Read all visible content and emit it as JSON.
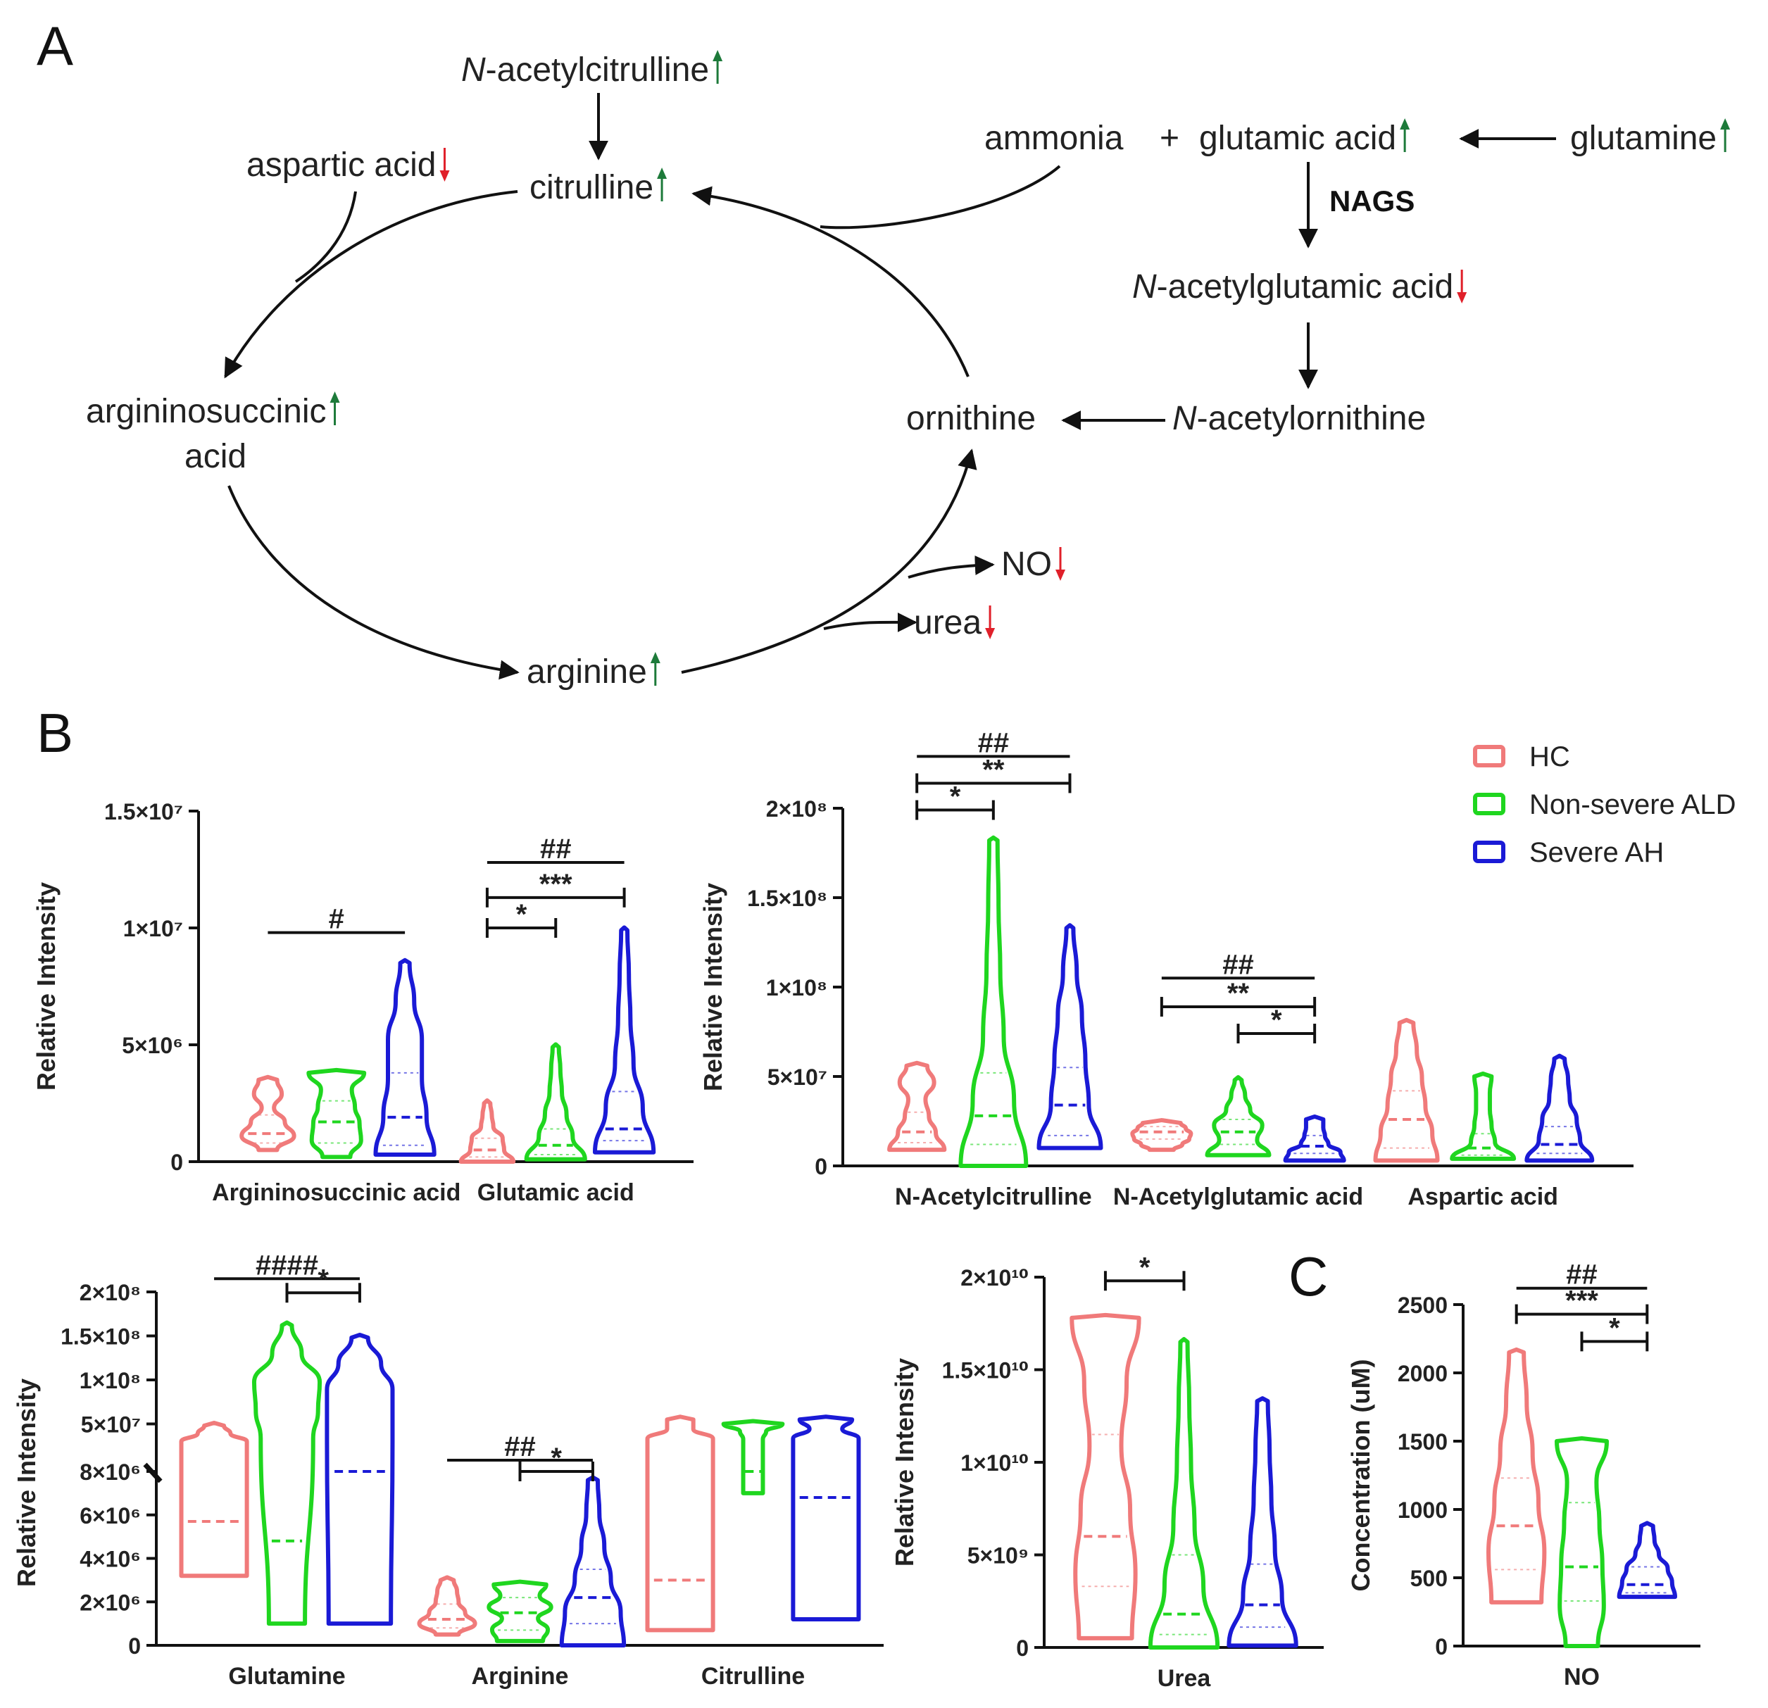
{
  "panels": {
    "a_label": "A",
    "b_label": "B",
    "c_label": "C"
  },
  "pathway": {
    "up_color": "#1d7a3a",
    "down_color": "#e0202a",
    "nags_label": "NAGS",
    "nodes": [
      {
        "id": "acetylcitrulline",
        "prefix": "N",
        "text": "-acetylcitrulline",
        "dir": "up"
      },
      {
        "id": "aspartic",
        "prefix": "",
        "text": "aspartic acid",
        "dir": "down"
      },
      {
        "id": "citrulline",
        "prefix": "",
        "text": "citrulline",
        "dir": "up"
      },
      {
        "id": "ammonia",
        "prefix": "",
        "text": "ammonia",
        "dir": ""
      },
      {
        "id": "plus",
        "prefix": "",
        "text": "+",
        "dir": ""
      },
      {
        "id": "glutamic",
        "prefix": "",
        "text": "glutamic acid",
        "dir": "up"
      },
      {
        "id": "glutamine",
        "prefix": "",
        "text": "glutamine",
        "dir": "up"
      },
      {
        "id": "acetylglutamic",
        "prefix": "N",
        "text": "-acetylglutamic acid",
        "dir": "down"
      },
      {
        "id": "argsucc1",
        "prefix": "",
        "text": "argininosuccinic",
        "dir": "up"
      },
      {
        "id": "argsucc2",
        "prefix": "",
        "text": "acid",
        "dir": ""
      },
      {
        "id": "ornithine",
        "prefix": "",
        "text": "ornithine",
        "dir": ""
      },
      {
        "id": "acetylornithine",
        "prefix": "N",
        "text": "-acetylornithine",
        "dir": ""
      },
      {
        "id": "no",
        "prefix": "",
        "text": "NO",
        "dir": "down"
      },
      {
        "id": "urea",
        "prefix": "",
        "text": "urea",
        "dir": "down"
      },
      {
        "id": "arginine",
        "prefix": "",
        "text": "arginine",
        "dir": "up"
      }
    ]
  },
  "legend": {
    "items": [
      {
        "label": "HC",
        "color": "#f07a7a"
      },
      {
        "label": "Non-severe ALD",
        "color": "#1fd61f"
      },
      {
        "label": "Severe AH",
        "color": "#1a1ad6"
      }
    ]
  },
  "chart_data": [
    {
      "type": "violin",
      "id": "b1",
      "ylabel": "Relative Intensity",
      "ylim": [
        0,
        15000000
      ],
      "yticks": [
        {
          "v": 0,
          "label": "0"
        },
        {
          "v": 5000000,
          "label": "5×10⁶"
        },
        {
          "v": 10000000,
          "label": "1×10⁷"
        },
        {
          "v": 15000000,
          "label": "1.5×10⁷"
        }
      ],
      "categories": [
        "Argininosuccinic acid",
        "Glutamic acid"
      ],
      "groups": [
        {
          "category": 0,
          "series": 0,
          "min": 500000,
          "max": 3500000,
          "median": 1200000,
          "q1": 800000,
          "q3": 2000000,
          "widths": [
            0.3,
            0.85,
            0.55,
            0.2,
            0.45,
            0.3
          ]
        },
        {
          "category": 0,
          "series": 1,
          "min": 200000,
          "max": 3800000,
          "median": 1700000,
          "q1": 800000,
          "q3": 2600000,
          "widths": [
            0.45,
            0.8,
            0.75,
            0.6,
            0.5,
            0.9
          ]
        },
        {
          "category": 0,
          "series": 2,
          "min": 300000,
          "max": 8500000,
          "median": 1900000,
          "q1": 700000,
          "q3": 3800000,
          "widths": [
            0.95,
            0.7,
            0.55,
            0.55,
            0.3,
            0.15
          ]
        },
        {
          "category": 1,
          "series": 0,
          "min": 0,
          "max": 2500000,
          "median": 500000,
          "q1": 200000,
          "q3": 1000000,
          "widths": [
            0.85,
            0.55,
            0.5,
            0.2,
            0.15,
            0.1
          ]
        },
        {
          "category": 1,
          "series": 1,
          "min": 100000,
          "max": 4900000,
          "median": 700000,
          "q1": 300000,
          "q3": 1400000,
          "widths": [
            0.95,
            0.55,
            0.35,
            0.2,
            0.15,
            0.1
          ]
        },
        {
          "category": 1,
          "series": 2,
          "min": 400000,
          "max": 9900000,
          "median": 1400000,
          "q1": 900000,
          "q3": 3000000,
          "widths": [
            0.95,
            0.6,
            0.3,
            0.2,
            0.15,
            0.1
          ]
        }
      ],
      "sig": [
        {
          "from": [
            0,
            0
          ],
          "to": [
            0,
            2
          ],
          "label": "#",
          "y": 9800000,
          "caps": false
        },
        {
          "from": [
            1,
            0
          ],
          "to": [
            1,
            2
          ],
          "label": "##",
          "y": 12800000,
          "caps": false
        },
        {
          "from": [
            1,
            0
          ],
          "to": [
            1,
            2
          ],
          "label": "***",
          "y": 11300000,
          "caps": true
        },
        {
          "from": [
            1,
            0
          ],
          "to": [
            1,
            1
          ],
          "label": "*",
          "y": 10000000,
          "caps": true
        }
      ]
    },
    {
      "type": "violin",
      "id": "b2",
      "ylabel": "Relative Intensity",
      "ylim": [
        0,
        200000000
      ],
      "yticks": [
        {
          "v": 0,
          "label": "0"
        },
        {
          "v": 50000000,
          "label": "5×10⁷"
        },
        {
          "v": 100000000,
          "label": "1×10⁸"
        },
        {
          "v": 150000000,
          "label": "1.5×10⁸"
        },
        {
          "v": 200000000,
          "label": "2×10⁸"
        }
      ],
      "categories": [
        "N-Acetylcitrulline",
        "N-Acetylglutamic acid",
        "Aspartic acid"
      ],
      "groups": [
        {
          "category": 0,
          "series": 0,
          "min": 9000000,
          "max": 56000000,
          "median": 19000000,
          "q1": 13000000,
          "q3": 30000000,
          "widths": [
            0.8,
            0.55,
            0.35,
            0.25,
            0.5,
            0.3
          ]
        },
        {
          "category": 0,
          "series": 1,
          "min": 0,
          "max": 182000000,
          "median": 28000000,
          "q1": 12000000,
          "q3": 52000000,
          "widths": [
            0.95,
            0.6,
            0.3,
            0.2,
            0.15,
            0.12
          ]
        },
        {
          "category": 0,
          "series": 2,
          "min": 10000000,
          "max": 133000000,
          "median": 34000000,
          "q1": 17000000,
          "q3": 55000000,
          "widths": [
            0.9,
            0.55,
            0.45,
            0.35,
            0.2,
            0.1
          ]
        },
        {
          "category": 1,
          "series": 0,
          "min": 9000000,
          "max": 24000000,
          "median": 19000000,
          "q1": 15000000,
          "q3": 22000000,
          "widths": [
            0.35,
            0.6,
            0.8,
            0.85,
            0.7,
            0.55
          ]
        },
        {
          "category": 1,
          "series": 1,
          "min": 6000000,
          "max": 48000000,
          "median": 19000000,
          "q1": 12000000,
          "q3": 26000000,
          "widths": [
            0.9,
            0.55,
            0.7,
            0.35,
            0.2,
            0.1
          ]
        },
        {
          "category": 1,
          "series": 2,
          "min": 3000000,
          "max": 26000000,
          "median": 11000000,
          "q1": 7000000,
          "q3": 17000000,
          "widths": [
            0.85,
            0.75,
            0.4,
            0.3,
            0.25,
            0.25
          ]
        }
      ],
      "sig": [
        {
          "from": [
            0,
            0
          ],
          "to": [
            0,
            2
          ],
          "label": "##",
          "y": 229000000,
          "caps": false
        },
        {
          "from": [
            0,
            0
          ],
          "to": [
            0,
            2
          ],
          "label": "**",
          "y": 214000000,
          "caps": true
        },
        {
          "from": [
            0,
            0
          ],
          "to": [
            0,
            1
          ],
          "label": "*",
          "y": 199000000,
          "caps": true
        },
        {
          "from": [
            1,
            0
          ],
          "to": [
            1,
            2
          ],
          "label": "##",
          "y": 105000000,
          "caps": false
        },
        {
          "from": [
            1,
            0
          ],
          "to": [
            1,
            2
          ],
          "label": "**",
          "y": 89000000,
          "caps": true
        },
        {
          "from": [
            1,
            1
          ],
          "to": [
            1,
            2
          ],
          "label": "*",
          "y": 74000000,
          "caps": true
        }
      ],
      "extra_groups": [
        {
          "category": 2,
          "series": 0,
          "min": 3000000,
          "max": 80000000,
          "median": 26000000,
          "q1": 10000000,
          "q3": 42000000,
          "widths": [
            0.9,
            0.75,
            0.55,
            0.45,
            0.3,
            0.2
          ]
        },
        {
          "category": 2,
          "series": 1,
          "min": 4000000,
          "max": 50000000,
          "median": 10000000,
          "q1": 6000000,
          "q3": 18000000,
          "widths": [
            0.9,
            0.35,
            0.25,
            0.2,
            0.2,
            0.25
          ]
        },
        {
          "category": 2,
          "series": 2,
          "min": 3000000,
          "max": 60000000,
          "median": 12000000,
          "q1": 7000000,
          "q3": 22000000,
          "widths": [
            0.95,
            0.6,
            0.5,
            0.3,
            0.25,
            0.15
          ]
        }
      ]
    },
    {
      "type": "violin",
      "id": "b3",
      "ylabel": "Relative Intensity",
      "broken_axis": true,
      "lower_ylim": [
        0,
        8000000
      ],
      "upper_ylim": [
        8000000,
        200000000
      ],
      "yticks_lower": [
        {
          "v": 0,
          "label": "0"
        },
        {
          "v": 2000000,
          "label": "2×10⁶"
        },
        {
          "v": 4000000,
          "label": "4×10⁶"
        },
        {
          "v": 6000000,
          "label": "6×10⁶"
        },
        {
          "v": 8000000,
          "label": "8×10⁶"
        }
      ],
      "yticks_upper": [
        {
          "v": 50000000,
          "label": "5×10⁷"
        },
        {
          "v": 100000000,
          "label": "1×10⁸"
        },
        {
          "v": 150000000,
          "label": "1.5×10⁸"
        },
        {
          "v": 200000000,
          "label": "2×10⁸"
        }
      ],
      "categories": [
        "Glutamine",
        "Arginine",
        "Citrulline"
      ],
      "groups": [
        {
          "category": 0,
          "series": 0,
          "min": 3200000,
          "max": 48000000,
          "median": 5700000,
          "widths": [
            1.0,
            1.0,
            1.0,
            1.0,
            0.5,
            0.3
          ]
        },
        {
          "category": 0,
          "series": 1,
          "min": 1000000,
          "max": 162000000,
          "median": 4800000,
          "widths": [
            0.55,
            0.8,
            0.95,
            1.0,
            0.45,
            0.15
          ]
        },
        {
          "category": 0,
          "series": 2,
          "min": 1000000,
          "max": 148000000,
          "median": 8000000,
          "widths": [
            0.95,
            1.0,
            1.0,
            1.0,
            0.65,
            0.25
          ]
        },
        {
          "category": 1,
          "series": 0,
          "min": 500000,
          "max": 3000000,
          "median": 1200000,
          "q1": 800000,
          "q3": 1900000,
          "widths": [
            0.35,
            0.85,
            0.55,
            0.35,
            0.3,
            0.2
          ]
        },
        {
          "category": 1,
          "series": 1,
          "min": 200000,
          "max": 2800000,
          "median": 1500000,
          "q1": 700000,
          "q3": 2200000,
          "widths": [
            0.7,
            0.85,
            0.55,
            0.95,
            0.6,
            0.8
          ]
        },
        {
          "category": 1,
          "series": 2,
          "min": 0,
          "max": 7600000,
          "median": 2200000,
          "q1": 1000000,
          "q3": 3500000,
          "widths": [
            0.95,
            0.85,
            0.55,
            0.35,
            0.2,
            0.15
          ]
        },
        {
          "category": 2,
          "series": 0,
          "min": 700000,
          "max": 55000000,
          "median": 3000000,
          "widths": [
            1.0,
            1.0,
            1.0,
            1.0,
            0.4,
            0.4
          ]
        },
        {
          "category": 2,
          "series": 1,
          "min": 7000000,
          "max": 50000000,
          "median": 8000000,
          "widths": [
            0.3,
            0.3,
            0.3,
            0.3,
            0.4,
            0.9
          ]
        },
        {
          "category": 2,
          "series": 2,
          "min": 1200000,
          "max": 55000000,
          "median": 6800000,
          "widths": [
            1.0,
            1.0,
            1.0,
            1.0,
            0.5,
            0.8
          ]
        }
      ],
      "sig": [
        {
          "from": [
            0,
            0
          ],
          "to": [
            0,
            2
          ],
          "label": "####",
          "y": 215000000,
          "caps": false
        },
        {
          "from": [
            0,
            1
          ],
          "to": [
            0,
            2
          ],
          "label": "*",
          "y": 199000000,
          "caps": true
        },
        {
          "from": [
            1,
            0
          ],
          "to": [
            1,
            2
          ],
          "label": "##",
          "y": 8800000,
          "caps": false
        },
        {
          "from": [
            1,
            1
          ],
          "to": [
            1,
            2
          ],
          "label": "*",
          "y": 8000000,
          "caps": true
        }
      ]
    },
    {
      "type": "violin",
      "id": "b4",
      "ylabel": "Relative Intensity",
      "ylim": [
        0,
        20000000000
      ],
      "yticks": [
        {
          "v": 0,
          "label": "0"
        },
        {
          "v": 5000000000,
          "label": "5×10⁹"
        },
        {
          "v": 10000000000,
          "label": "1×10¹⁰"
        },
        {
          "v": 15000000000,
          "label": "1.5×10¹⁰"
        },
        {
          "v": 20000000000,
          "label": "2×10¹⁰"
        }
      ],
      "categories": [
        "Urea"
      ],
      "groups": [
        {
          "category": 0,
          "series": 0,
          "min": 500000000,
          "max": 17800000000,
          "median": 6000000000,
          "q1": 3300000000,
          "q3": 11500000000,
          "widths": [
            0.75,
            0.85,
            0.7,
            0.45,
            0.6,
            0.95
          ]
        },
        {
          "category": 0,
          "series": 1,
          "min": 0,
          "max": 16500000000,
          "median": 1800000000,
          "q1": 700000000,
          "q3": 5000000000,
          "widths": [
            0.95,
            0.55,
            0.3,
            0.2,
            0.15,
            0.1
          ]
        },
        {
          "category": 0,
          "series": 2,
          "min": 100000000,
          "max": 13300000000,
          "median": 2300000000,
          "q1": 1100000000,
          "q3": 4500000000,
          "widths": [
            0.95,
            0.55,
            0.35,
            0.25,
            0.2,
            0.15
          ]
        }
      ],
      "sig": [
        {
          "from": [
            0,
            0
          ],
          "to": [
            0,
            1
          ],
          "label": "*",
          "y": 19800000000,
          "caps": true
        }
      ]
    },
    {
      "type": "violin",
      "id": "c",
      "ylabel": "Concentration (uM)",
      "ylim": [
        0,
        2500
      ],
      "yticks": [
        {
          "v": 0,
          "label": "0"
        },
        {
          "v": 500,
          "label": "500"
        },
        {
          "v": 1000,
          "label": "1000"
        },
        {
          "v": 1500,
          "label": "1500"
        },
        {
          "v": 2000,
          "label": "2000"
        },
        {
          "v": 2500,
          "label": "2500"
        }
      ],
      "categories": [
        "NO"
      ],
      "groups": [
        {
          "category": 0,
          "series": 0,
          "min": 320,
          "max": 2150,
          "median": 880,
          "q1": 560,
          "q3": 1230,
          "widths": [
            0.85,
            0.95,
            0.75,
            0.55,
            0.35,
            0.25
          ]
        },
        {
          "category": 0,
          "series": 1,
          "min": 0,
          "max": 1500,
          "median": 580,
          "q1": 330,
          "q3": 1050,
          "widths": [
            0.55,
            0.75,
            0.7,
            0.6,
            0.5,
            0.85
          ]
        },
        {
          "category": 0,
          "series": 2,
          "min": 360,
          "max": 880,
          "median": 450,
          "q1": 390,
          "q3": 580,
          "widths": [
            0.95,
            0.85,
            0.7,
            0.4,
            0.25,
            0.2
          ]
        }
      ],
      "sig": [
        {
          "from": [
            0,
            0
          ],
          "to": [
            0,
            2
          ],
          "label": "##",
          "y": 2620,
          "caps": false
        },
        {
          "from": [
            0,
            0
          ],
          "to": [
            0,
            2
          ],
          "label": "***",
          "y": 2430,
          "caps": true
        },
        {
          "from": [
            0,
            1
          ],
          "to": [
            0,
            2
          ],
          "label": "*",
          "y": 2230,
          "caps": true
        }
      ]
    }
  ]
}
